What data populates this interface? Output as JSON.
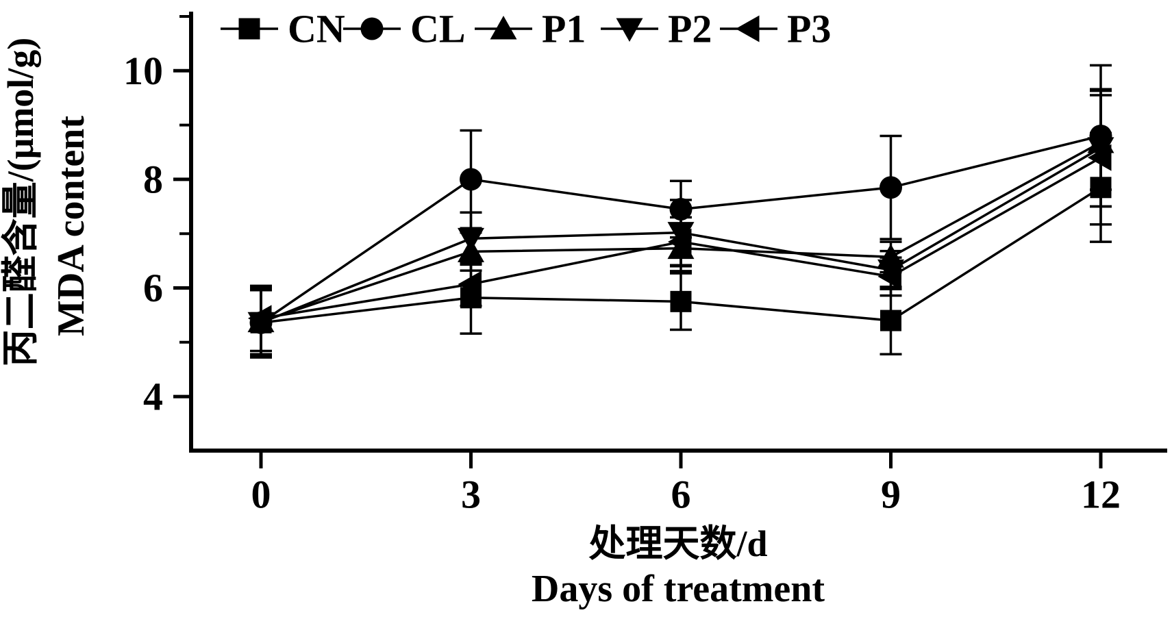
{
  "chart_data": {
    "type": "line",
    "title": "",
    "x": [
      0,
      3,
      6,
      9,
      12
    ],
    "xlabel_cn": "处理天数/d",
    "xlabel_en": "Days of treatment",
    "ylabel_cn": "丙二醛含量/(μmol/g)",
    "ylabel_en": "MDA content",
    "xlim": [
      -1,
      13
    ],
    "ylim": [
      3,
      11
    ],
    "xticks": [
      0,
      3,
      6,
      9,
      12
    ],
    "yticks_major": [
      4,
      6,
      8,
      10
    ],
    "yticks_minor": [
      5,
      7,
      9,
      11
    ],
    "grid": false,
    "legend_position": "top-inside",
    "error_bars": true,
    "colors": {
      "foreground": "#000000",
      "background": "#ffffff"
    },
    "series": [
      {
        "name": "CN",
        "marker": "square",
        "values": [
          5.36,
          5.82,
          5.75,
          5.4,
          7.85
        ],
        "errors": [
          0.64,
          0.66,
          0.52,
          0.62,
          1.0
        ]
      },
      {
        "name": "CL",
        "marker": "circle",
        "values": [
          5.36,
          8.0,
          7.45,
          7.85,
          8.8
        ],
        "errors": [
          0.6,
          0.9,
          0.52,
          0.95,
          1.3
        ]
      },
      {
        "name": "P1",
        "marker": "triangle-up",
        "values": [
          5.38,
          6.67,
          6.73,
          6.57,
          8.68
        ],
        "errors": [
          0.6,
          0.35,
          0.42,
          0.28,
          0.87
        ]
      },
      {
        "name": "P2",
        "marker": "triangle-down",
        "values": [
          5.36,
          6.91,
          7.02,
          6.33,
          8.58
        ],
        "errors": [
          0.6,
          0.48,
          0.6,
          0.35,
          1.08
        ]
      },
      {
        "name": "P3",
        "marker": "triangle-left",
        "values": [
          5.44,
          6.07,
          6.85,
          6.21,
          8.4
        ],
        "errors": [
          0.6,
          0.4,
          0.45,
          0.35,
          1.23
        ]
      }
    ],
    "marker_draw_order": [
      "P3",
      "P1",
      "P2",
      "CL",
      "CN"
    ]
  }
}
